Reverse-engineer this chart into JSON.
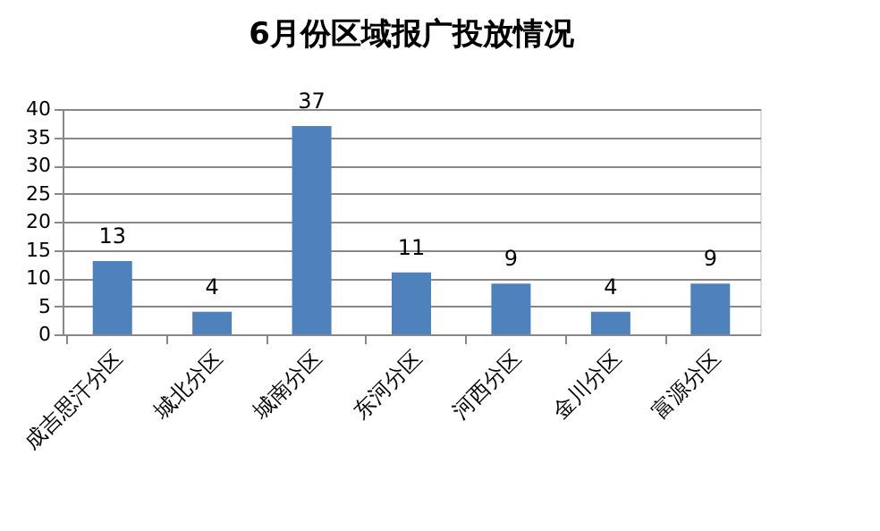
{
  "chart_data": {
    "type": "bar",
    "title": "6月份区域报广投放情况",
    "categories": [
      "成吉思汗分区",
      "城北分区",
      "城南分区",
      "东河分区",
      "河西分区",
      "金川分区",
      "富源分区"
    ],
    "values": [
      13,
      4,
      37,
      11,
      9,
      4,
      9
    ],
    "color": "#4f81bd",
    "ylim": [
      0,
      40
    ],
    "yticks": [
      0,
      5,
      10,
      15,
      20,
      25,
      30,
      35,
      40
    ],
    "grid": "y",
    "data_labels": true
  }
}
